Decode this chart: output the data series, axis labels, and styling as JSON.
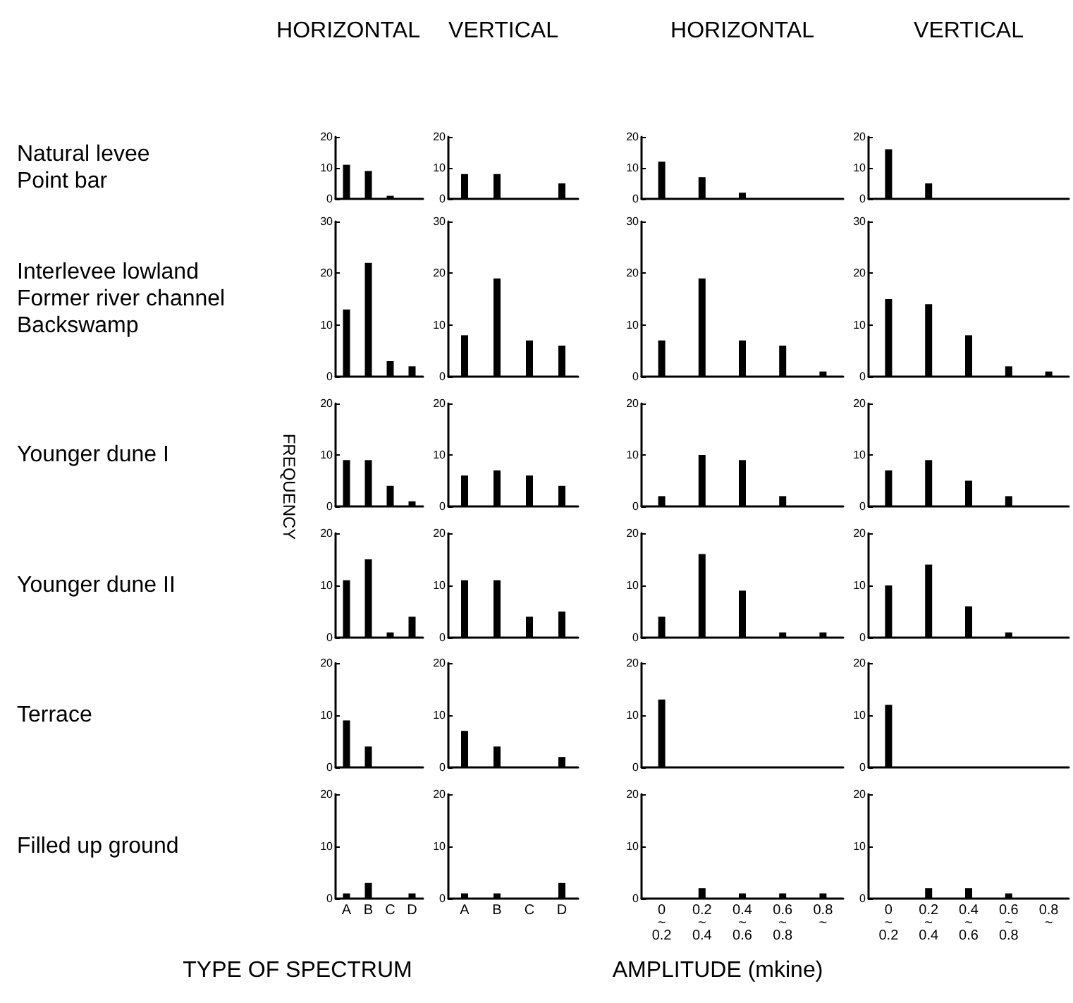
{
  "chart_data": [
    {
      "type": "bar",
      "title": "HORIZONTAL",
      "annotations": [
        "Natural levee",
        "Point bar"
      ],
      "categories": [
        null,
        null,
        null,
        null
      ],
      "values": [
        11,
        9,
        1,
        0
      ],
      "color": "#000000",
      "ylim": [
        0,
        20
      ],
      "yticks": [
        0,
        10,
        20
      ],
      "tick_labels": "y"
    },
    {
      "type": "bar",
      "title": "VERTICAL",
      "categories": [
        null,
        null,
        null,
        null
      ],
      "values": [
        8,
        8,
        0,
        5
      ],
      "color": "#000000",
      "ylim": [
        0,
        20
      ],
      "yticks": [
        0,
        10,
        20
      ],
      "tick_labels": "y"
    },
    {
      "type": "bar",
      "title": "HORIZONTAL",
      "categories": [
        null,
        null,
        null,
        null,
        null
      ],
      "values": [
        12,
        7,
        2,
        0,
        0
      ],
      "color": "#000000",
      "ylim": [
        0,
        20
      ],
      "yticks": [
        0,
        10,
        20
      ],
      "tick_labels": "y"
    },
    {
      "type": "bar",
      "title": "VERTICAL",
      "categories": [
        null,
        null,
        null,
        null,
        null
      ],
      "values": [
        16,
        5,
        0,
        0,
        0
      ],
      "color": "#000000",
      "ylim": [
        0,
        20
      ],
      "yticks": [
        0,
        10,
        20
      ],
      "tick_labels": "y"
    },
    {
      "type": "bar",
      "annotations": [
        "Interlevee lowland",
        "Former river channel",
        "Backswamp"
      ],
      "categories": [
        null,
        null,
        null,
        null
      ],
      "values": [
        13,
        22,
        3,
        2
      ],
      "color": "#000000",
      "ylim": [
        0,
        30
      ],
      "yticks": [
        0,
        10,
        20,
        30
      ],
      "tick_labels": "y"
    },
    {
      "type": "bar",
      "categories": [
        null,
        null,
        null,
        null
      ],
      "values": [
        8,
        19,
        7,
        6
      ],
      "color": "#000000",
      "ylim": [
        0,
        30
      ],
      "yticks": [
        0,
        10,
        20,
        30
      ],
      "tick_labels": "y"
    },
    {
      "type": "bar",
      "categories": [
        null,
        null,
        null,
        null,
        null
      ],
      "values": [
        7,
        19,
        7,
        6,
        1
      ],
      "color": "#000000",
      "ylim": [
        0,
        30
      ],
      "yticks": [
        0,
        10,
        20,
        30
      ],
      "tick_labels": "y"
    },
    {
      "type": "bar",
      "categories": [
        null,
        null,
        null,
        null,
        null
      ],
      "values": [
        15,
        14,
        8,
        2,
        1
      ],
      "color": "#000000",
      "ylim": [
        0,
        30
      ],
      "yticks": [
        0,
        10,
        20,
        30
      ],
      "tick_labels": "y"
    },
    {
      "type": "bar",
      "annotations": [
        "Younger dune I"
      ],
      "ylabel": "FREQUENCY",
      "categories": [
        null,
        null,
        null,
        null
      ],
      "values": [
        9,
        9,
        4,
        1
      ],
      "color": "#000000",
      "ylim": [
        0,
        20
      ],
      "yticks": [
        0,
        10,
        20
      ],
      "tick_labels": "y"
    },
    {
      "type": "bar",
      "categories": [
        null,
        null,
        null,
        null
      ],
      "values": [
        6,
        7,
        6,
        4
      ],
      "color": "#000000",
      "ylim": [
        0,
        20
      ],
      "yticks": [
        0,
        10,
        20
      ],
      "tick_labels": "y"
    },
    {
      "type": "bar",
      "categories": [
        null,
        null,
        null,
        null,
        null
      ],
      "values": [
        2,
        10,
        9,
        2,
        0
      ],
      "color": "#000000",
      "ylim": [
        0,
        20
      ],
      "yticks": [
        0,
        10,
        20
      ],
      "tick_labels": "y"
    },
    {
      "type": "bar",
      "categories": [
        null,
        null,
        null,
        null,
        null
      ],
      "values": [
        7,
        9,
        5,
        2,
        0
      ],
      "color": "#000000",
      "ylim": [
        0,
        20
      ],
      "yticks": [
        0,
        10,
        20
      ],
      "tick_labels": "y"
    },
    {
      "type": "bar",
      "annotations": [
        "Younger dune II"
      ],
      "categories": [
        null,
        null,
        null,
        null
      ],
      "values": [
        11,
        15,
        1,
        4
      ],
      "color": "#000000",
      "ylim": [
        0,
        20
      ],
      "yticks": [
        0,
        10,
        20
      ],
      "tick_labels": "y"
    },
    {
      "type": "bar",
      "categories": [
        null,
        null,
        null,
        null
      ],
      "values": [
        11,
        11,
        4,
        5
      ],
      "color": "#000000",
      "ylim": [
        0,
        20
      ],
      "yticks": [
        0,
        10,
        20
      ],
      "tick_labels": "y"
    },
    {
      "type": "bar",
      "categories": [
        null,
        null,
        null,
        null,
        null
      ],
      "values": [
        4,
        16,
        9,
        1,
        1
      ],
      "color": "#000000",
      "ylim": [
        0,
        20
      ],
      "yticks": [
        0,
        10,
        20
      ],
      "tick_labels": "y"
    },
    {
      "type": "bar",
      "categories": [
        null,
        null,
        null,
        null,
        null
      ],
      "values": [
        10,
        14,
        6,
        1,
        0
      ],
      "color": "#000000",
      "ylim": [
        0,
        20
      ],
      "yticks": [
        0,
        10,
        20
      ],
      "tick_labels": "y"
    },
    {
      "type": "bar",
      "annotations": [
        "Terrace"
      ],
      "categories": [
        null,
        null,
        null,
        null
      ],
      "values": [
        9,
        4,
        0,
        0
      ],
      "color": "#000000",
      "ylim": [
        0,
        20
      ],
      "yticks": [
        0,
        10,
        20
      ],
      "tick_labels": "y"
    },
    {
      "type": "bar",
      "categories": [
        null,
        null,
        null,
        null
      ],
      "values": [
        7,
        4,
        0,
        2
      ],
      "color": "#000000",
      "ylim": [
        0,
        20
      ],
      "yticks": [
        0,
        10,
        20
      ],
      "tick_labels": "y"
    },
    {
      "type": "bar",
      "categories": [
        null,
        null,
        null,
        null,
        null
      ],
      "values": [
        13,
        0,
        0,
        0,
        0
      ],
      "color": "#000000",
      "ylim": [
        0,
        20
      ],
      "yticks": [
        0,
        10,
        20
      ],
      "tick_labels": "y"
    },
    {
      "type": "bar",
      "categories": [
        null,
        null,
        null,
        null,
        null
      ],
      "values": [
        12,
        0,
        0,
        0,
        0
      ],
      "color": "#000000",
      "ylim": [
        0,
        20
      ],
      "yticks": [
        0,
        10,
        20
      ],
      "tick_labels": "y"
    },
    {
      "type": "bar",
      "annotations": [
        "Filled up ground"
      ],
      "xlabel": "TYPE OF SPECTRUM",
      "categories": [
        "A",
        "B",
        "C",
        "D"
      ],
      "values": [
        1,
        3,
        0,
        1
      ],
      "color": "#000000",
      "ylim": [
        0,
        20
      ],
      "yticks": [
        0,
        10,
        20
      ]
    },
    {
      "type": "bar",
      "categories": [
        "A",
        "B",
        "C",
        "D"
      ],
      "values": [
        1,
        1,
        0,
        3
      ],
      "color": "#000000",
      "ylim": [
        0,
        20
      ],
      "yticks": [
        0,
        10,
        20
      ]
    },
    {
      "type": "bar",
      "xlabel": "AMPLITUDE (mkine)",
      "categories": [
        "0\n~\n0.2",
        "0.2\n~\n0.4",
        "0.4\n~\n0.6",
        "0.6\n~\n0.8",
        "0.8\n~"
      ],
      "values": [
        0,
        2,
        1,
        1,
        1
      ],
      "color": "#000000",
      "ylim": [
        0,
        20
      ],
      "yticks": [
        0,
        10,
        20
      ]
    },
    {
      "type": "bar",
      "categories": [
        "0\n~\n0.2",
        "0.2\n~\n0.4",
        "0.4\n~\n0.6",
        "0.6\n~\n0.8",
        "0.8\n~"
      ],
      "values": [
        0,
        2,
        2,
        1,
        0
      ],
      "color": "#000000",
      "ylim": [
        0,
        20
      ],
      "yticks": [
        0,
        10,
        20
      ]
    }
  ]
}
